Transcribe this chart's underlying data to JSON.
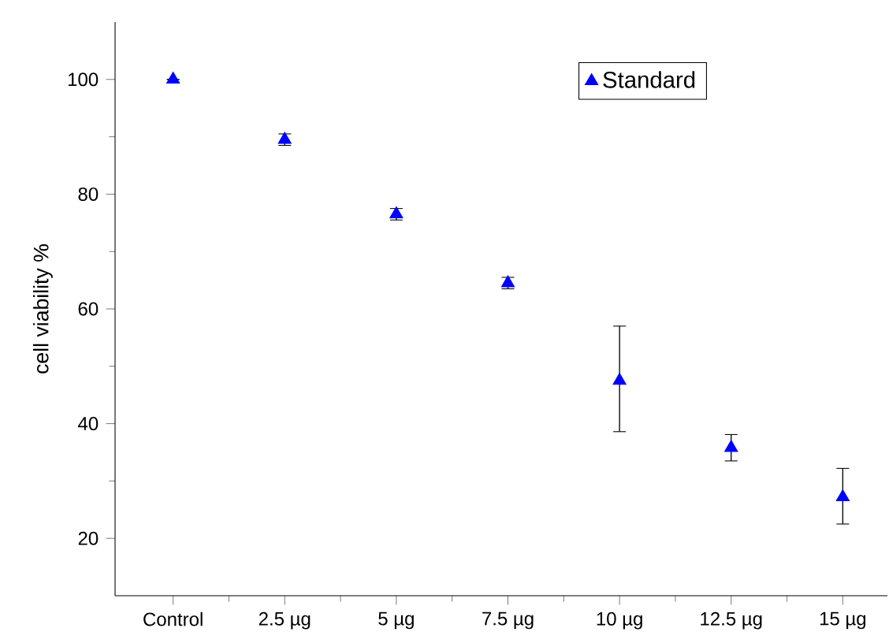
{
  "chart_data": {
    "type": "scatter",
    "ylabel": "cell viability %",
    "categories": [
      "Control",
      "2.5 µg",
      "5 µg",
      "7.5 µg",
      "10 µg",
      "12.5 µg",
      "15 µg"
    ],
    "series": [
      {
        "name": "Standard",
        "color": "#0000ff",
        "values": [
          100,
          89.5,
          76.5,
          64.5,
          47.5,
          35.8,
          27.2
        ],
        "errors": [
          null,
          1,
          1,
          1,
          [
            38.6,
            57
          ],
          2.3,
          [
            22.5,
            32.2
          ]
        ]
      }
    ],
    "ylim": [
      10,
      110
    ],
    "yticks": [
      20,
      40,
      60,
      80,
      100
    ],
    "marker": "triangle",
    "legend": "top right",
    "grid": false
  }
}
